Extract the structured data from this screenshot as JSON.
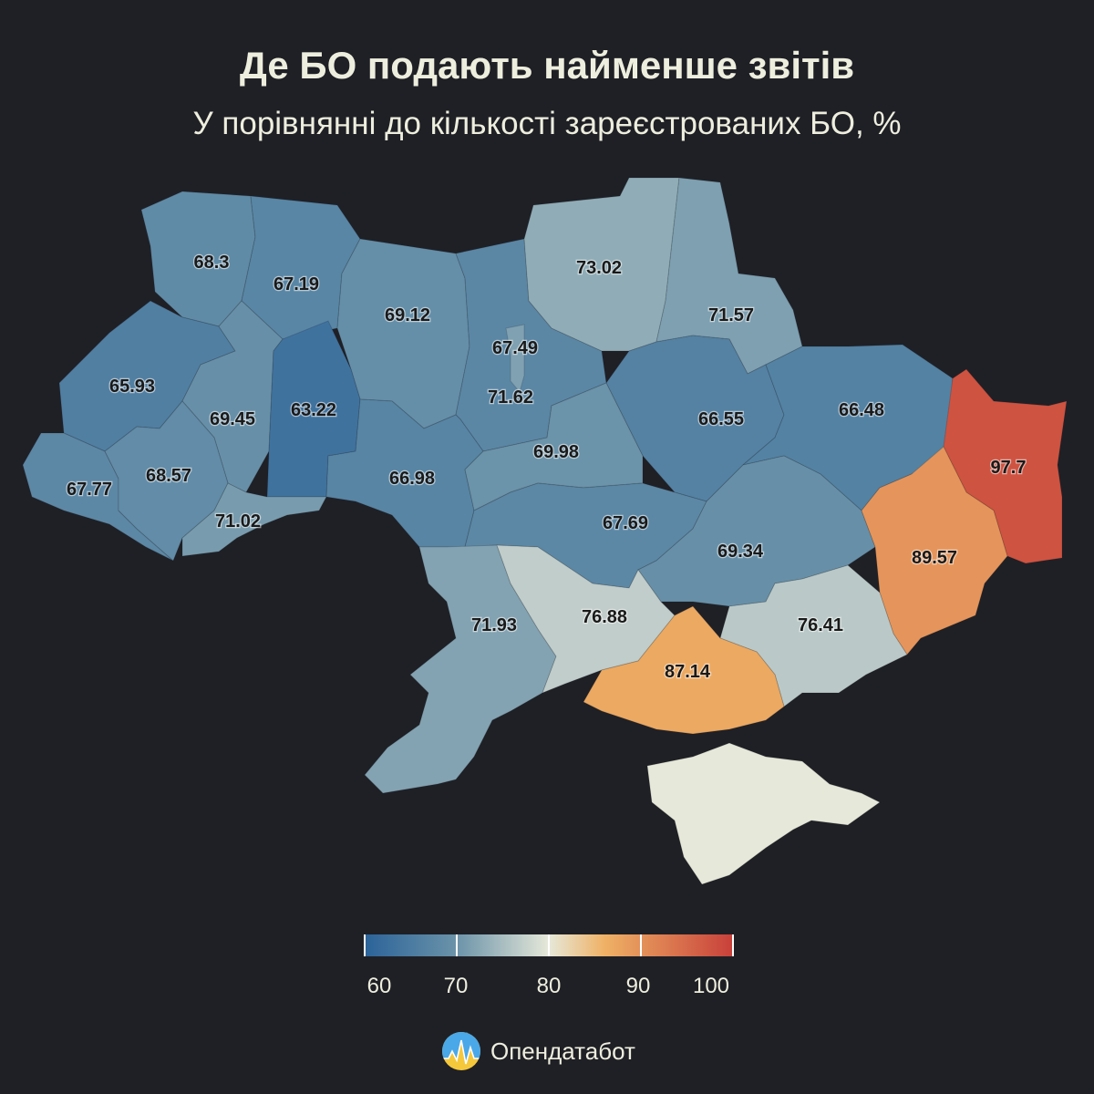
{
  "title": "Де БО подають найменше звітів",
  "subtitle": "У порівнянні до кількості зареєстрованих БО, %",
  "brand": {
    "name": "Опендатабот",
    "icon": "opendatabot-logo-icon"
  },
  "legend": {
    "min": 60,
    "max": 100,
    "ticks": [
      "60",
      "70",
      "80",
      "90",
      "100"
    ],
    "tick_values": [
      60,
      70,
      80,
      90,
      100
    ],
    "colors": [
      "#2b6399",
      "#6b93a9",
      "#e6e8d9",
      "#efb266",
      "#c8403a"
    ],
    "color_stops": [
      60,
      70,
      80,
      86,
      100
    ]
  },
  "regions": [
    {
      "key": "volyn",
      "value": 68.3,
      "label": "68.3"
    },
    {
      "key": "rivne",
      "value": 67.19,
      "label": "67.19"
    },
    {
      "key": "zhytomyr",
      "value": 69.12,
      "label": "69.12"
    },
    {
      "key": "kyiv_oblast",
      "value": 67.49,
      "label": "67.49"
    },
    {
      "key": "chernihiv",
      "value": 73.02,
      "label": "73.02"
    },
    {
      "key": "sumy",
      "value": 71.57,
      "label": "71.57"
    },
    {
      "key": "lviv",
      "value": 65.93,
      "label": "65.93"
    },
    {
      "key": "ternopil",
      "value": 69.45,
      "label": "69.45"
    },
    {
      "key": "khmelnytskyi",
      "value": 63.22,
      "label": "63.22"
    },
    {
      "key": "kyiv_city",
      "value": 71.62,
      "label": "71.62"
    },
    {
      "key": "poltava",
      "value": 66.55,
      "label": "66.55"
    },
    {
      "key": "kharkiv",
      "value": 66.48,
      "label": "66.48"
    },
    {
      "key": "luhansk",
      "value": 97.7,
      "label": "97.7"
    },
    {
      "key": "zakarpattia",
      "value": 67.77,
      "label": "67.77"
    },
    {
      "key": "ivano_frankivsk",
      "value": 68.57,
      "label": "68.57"
    },
    {
      "key": "vinnytsia",
      "value": 66.98,
      "label": "66.98"
    },
    {
      "key": "cherkasy",
      "value": 69.98,
      "label": "69.98"
    },
    {
      "key": "chernivtsi",
      "value": 71.02,
      "label": "71.02"
    },
    {
      "key": "kirovohrad",
      "value": 67.69,
      "label": "67.69"
    },
    {
      "key": "dnipropetrovsk",
      "value": 69.34,
      "label": "69.34"
    },
    {
      "key": "donetsk",
      "value": 89.57,
      "label": "89.57"
    },
    {
      "key": "odesa",
      "value": 71.93,
      "label": "71.93"
    },
    {
      "key": "mykolaiv",
      "value": 76.88,
      "label": "76.88"
    },
    {
      "key": "zaporizhzhia",
      "value": 76.41,
      "label": "76.41"
    },
    {
      "key": "kherson",
      "value": 87.14,
      "label": "87.14"
    },
    {
      "key": "crimea",
      "value": null,
      "label": ""
    }
  ]
}
